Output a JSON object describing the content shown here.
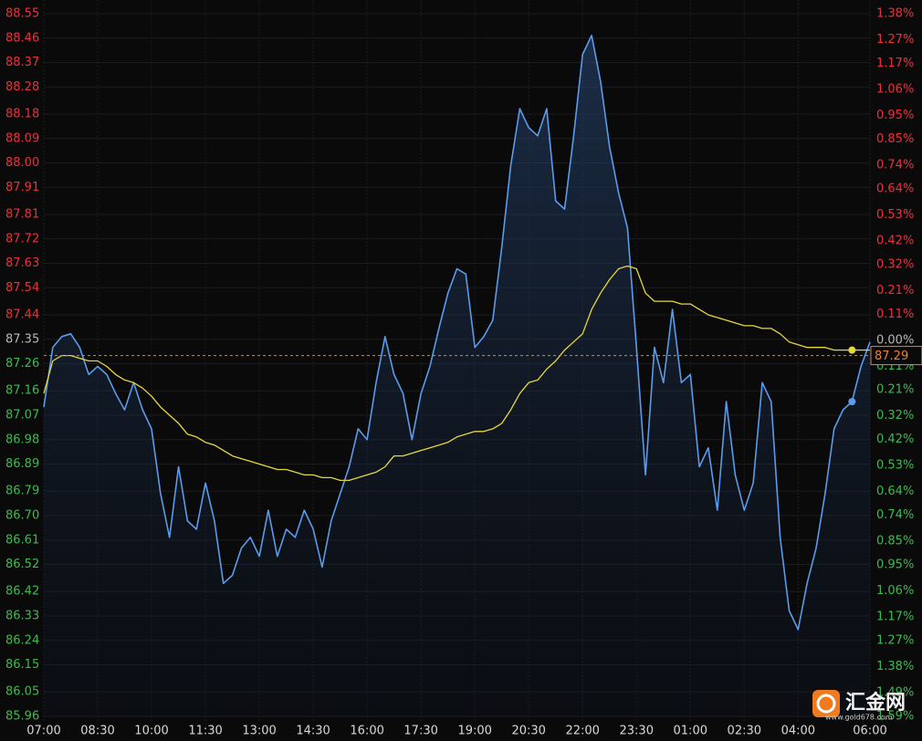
{
  "chart_data": {
    "type": "line",
    "categories": [
      "07:00",
      null,
      null,
      null,
      null,
      null,
      "08:30",
      null,
      null,
      null,
      null,
      null,
      "10:00",
      null,
      null,
      null,
      null,
      null,
      "11:30",
      null,
      null,
      null,
      null,
      null,
      "13:00",
      null,
      null,
      null,
      null,
      null,
      "14:30",
      null,
      null,
      null,
      null,
      null,
      "16:00",
      null,
      null,
      null,
      null,
      null,
      "17:30",
      null,
      null,
      null,
      null,
      null,
      "19:00",
      null,
      null,
      null,
      null,
      null,
      "20:30",
      null,
      null,
      null,
      null,
      null,
      "22:00",
      null,
      null,
      null,
      null,
      null,
      "23:30",
      null,
      null,
      null,
      null,
      null,
      "01:00",
      null,
      null,
      null,
      null,
      null,
      "02:30",
      null,
      null,
      null,
      null,
      null,
      "04:00",
      null,
      null,
      null,
      null,
      null,
      null,
      null,
      "06:00"
    ],
    "series": [
      {
        "color": "#5b9bea",
        "values": [
          87.1,
          87.32,
          87.36,
          87.37,
          87.32,
          87.22,
          87.25,
          87.22,
          87.15,
          87.09,
          87.19,
          87.09,
          87.02,
          86.78,
          86.62,
          86.88,
          86.68,
          86.65,
          86.82,
          86.68,
          86.45,
          86.48,
          86.58,
          86.62,
          86.55,
          86.72,
          86.55,
          86.65,
          86.62,
          86.72,
          86.65,
          86.51,
          86.68,
          86.78,
          86.88,
          87.02,
          86.98,
          87.19,
          87.36,
          87.22,
          87.15,
          86.98,
          87.15,
          87.25,
          87.39,
          87.52,
          87.61,
          87.59,
          87.32,
          87.36,
          87.42,
          87.69,
          87.99,
          88.2,
          88.13,
          88.1,
          88.2,
          87.86,
          87.83,
          88.1,
          88.4,
          88.47,
          88.3,
          88.06,
          87.89,
          87.76,
          87.32,
          86.85,
          87.32,
          87.19,
          87.46,
          87.19,
          87.22,
          86.88,
          86.95,
          86.72,
          87.12,
          86.85,
          86.72,
          86.82,
          87.19,
          87.12,
          86.62,
          86.35,
          86.28,
          86.45,
          86.58,
          86.78,
          87.02,
          87.09,
          87.12,
          87.25,
          87.34
        ]
      },
      {
        "color": "#e6d83a",
        "values": [
          87.15,
          87.27,
          87.29,
          87.29,
          87.28,
          87.27,
          87.27,
          87.25,
          87.22,
          87.2,
          87.19,
          87.17,
          87.14,
          87.1,
          87.07,
          87.04,
          87.0,
          86.99,
          86.97,
          86.96,
          86.94,
          86.92,
          86.91,
          86.9,
          86.89,
          86.88,
          86.87,
          86.87,
          86.86,
          86.85,
          86.85,
          86.84,
          86.84,
          86.83,
          86.83,
          86.84,
          86.85,
          86.86,
          86.88,
          86.92,
          86.92,
          86.93,
          86.94,
          86.95,
          86.96,
          86.97,
          86.99,
          87.0,
          87.01,
          87.01,
          87.02,
          87.04,
          87.09,
          87.15,
          87.19,
          87.2,
          87.24,
          87.27,
          87.31,
          87.34,
          87.37,
          87.46,
          87.52,
          87.57,
          87.61,
          87.62,
          87.61,
          87.52,
          87.49,
          87.49,
          87.49,
          87.48,
          87.48,
          87.46,
          87.44,
          87.43,
          87.42,
          87.41,
          87.4,
          87.4,
          87.39,
          87.39,
          87.37,
          87.34,
          87.33,
          87.32,
          87.32,
          87.32,
          87.31,
          87.31,
          87.31,
          87.31,
          87.31
        ]
      }
    ],
    "ylim": [
      85.96,
      88.55
    ],
    "yticks": [
      88.55,
      88.46,
      88.37,
      88.28,
      88.18,
      88.09,
      {
        "value": 88,
        "label": "88.00"
      },
      87.91,
      87.81,
      87.72,
      87.63,
      87.54,
      87.44,
      87.35,
      87.26,
      87.16,
      87.07,
      86.98,
      86.89,
      86.79,
      {
        "value": 86.7,
        "label": "86.70"
      },
      86.61,
      86.52,
      86.42,
      86.33,
      86.24,
      86.15,
      86.05,
      85.96
    ],
    "y2lim": [
      -1.59,
      1.38
    ],
    "y2ticks": [
      {
        "value": 1.38,
        "label": "1.38%"
      },
      {
        "value": 1.27,
        "label": "1.27%"
      },
      {
        "value": 1.17,
        "label": "1.17%"
      },
      {
        "value": 1.06,
        "label": "1.06%"
      },
      {
        "value": 0.95,
        "label": "0.95%"
      },
      {
        "value": 0.85,
        "label": "0.85%"
      },
      {
        "value": 0.74,
        "label": "0.74%"
      },
      {
        "value": 0.64,
        "label": "0.64%"
      },
      {
        "value": 0.53,
        "label": "0.53%"
      },
      {
        "value": 0.42,
        "label": "0.42%"
      },
      {
        "value": 0.32,
        "label": "0.32%"
      },
      {
        "value": 0.21,
        "label": "0.21%"
      },
      {
        "value": 0.11,
        "label": "0.11%"
      },
      {
        "value": 0,
        "label": "0.00%"
      },
      {
        "value": -0.11,
        "label": "0.11%"
      },
      {
        "value": -0.21,
        "label": "0.21%"
      },
      {
        "value": -0.32,
        "label": "0.32%"
      },
      {
        "value": -0.42,
        "label": "0.42%"
      },
      {
        "value": -0.53,
        "label": "0.53%"
      },
      {
        "value": -0.64,
        "label": "0.64%"
      },
      {
        "value": -0.74,
        "label": "0.74%"
      },
      {
        "value": -0.85,
        "label": "0.85%"
      },
      {
        "value": -0.95,
        "label": "0.95%"
      },
      {
        "value": -1.06,
        "label": "1.06%"
      },
      {
        "value": -1.17,
        "label": "1.17%"
      },
      {
        "value": -1.27,
        "label": "1.27%"
      },
      {
        "value": -1.38,
        "label": "1.38%"
      },
      {
        "value": -1.49,
        "label": "1.49%"
      },
      {
        "value": -1.59,
        "label": "1.59%"
      }
    ],
    "reference_line": {
      "value": 87.29,
      "label": "87.29",
      "color": "#e8823a"
    },
    "colors": {
      "up": "#e8323c",
      "down": "#3fb950",
      "flat": "#b8b8b8"
    },
    "grid": true,
    "watermark": {
      "text": "汇金网",
      "url": "www.gold678.com"
    }
  }
}
